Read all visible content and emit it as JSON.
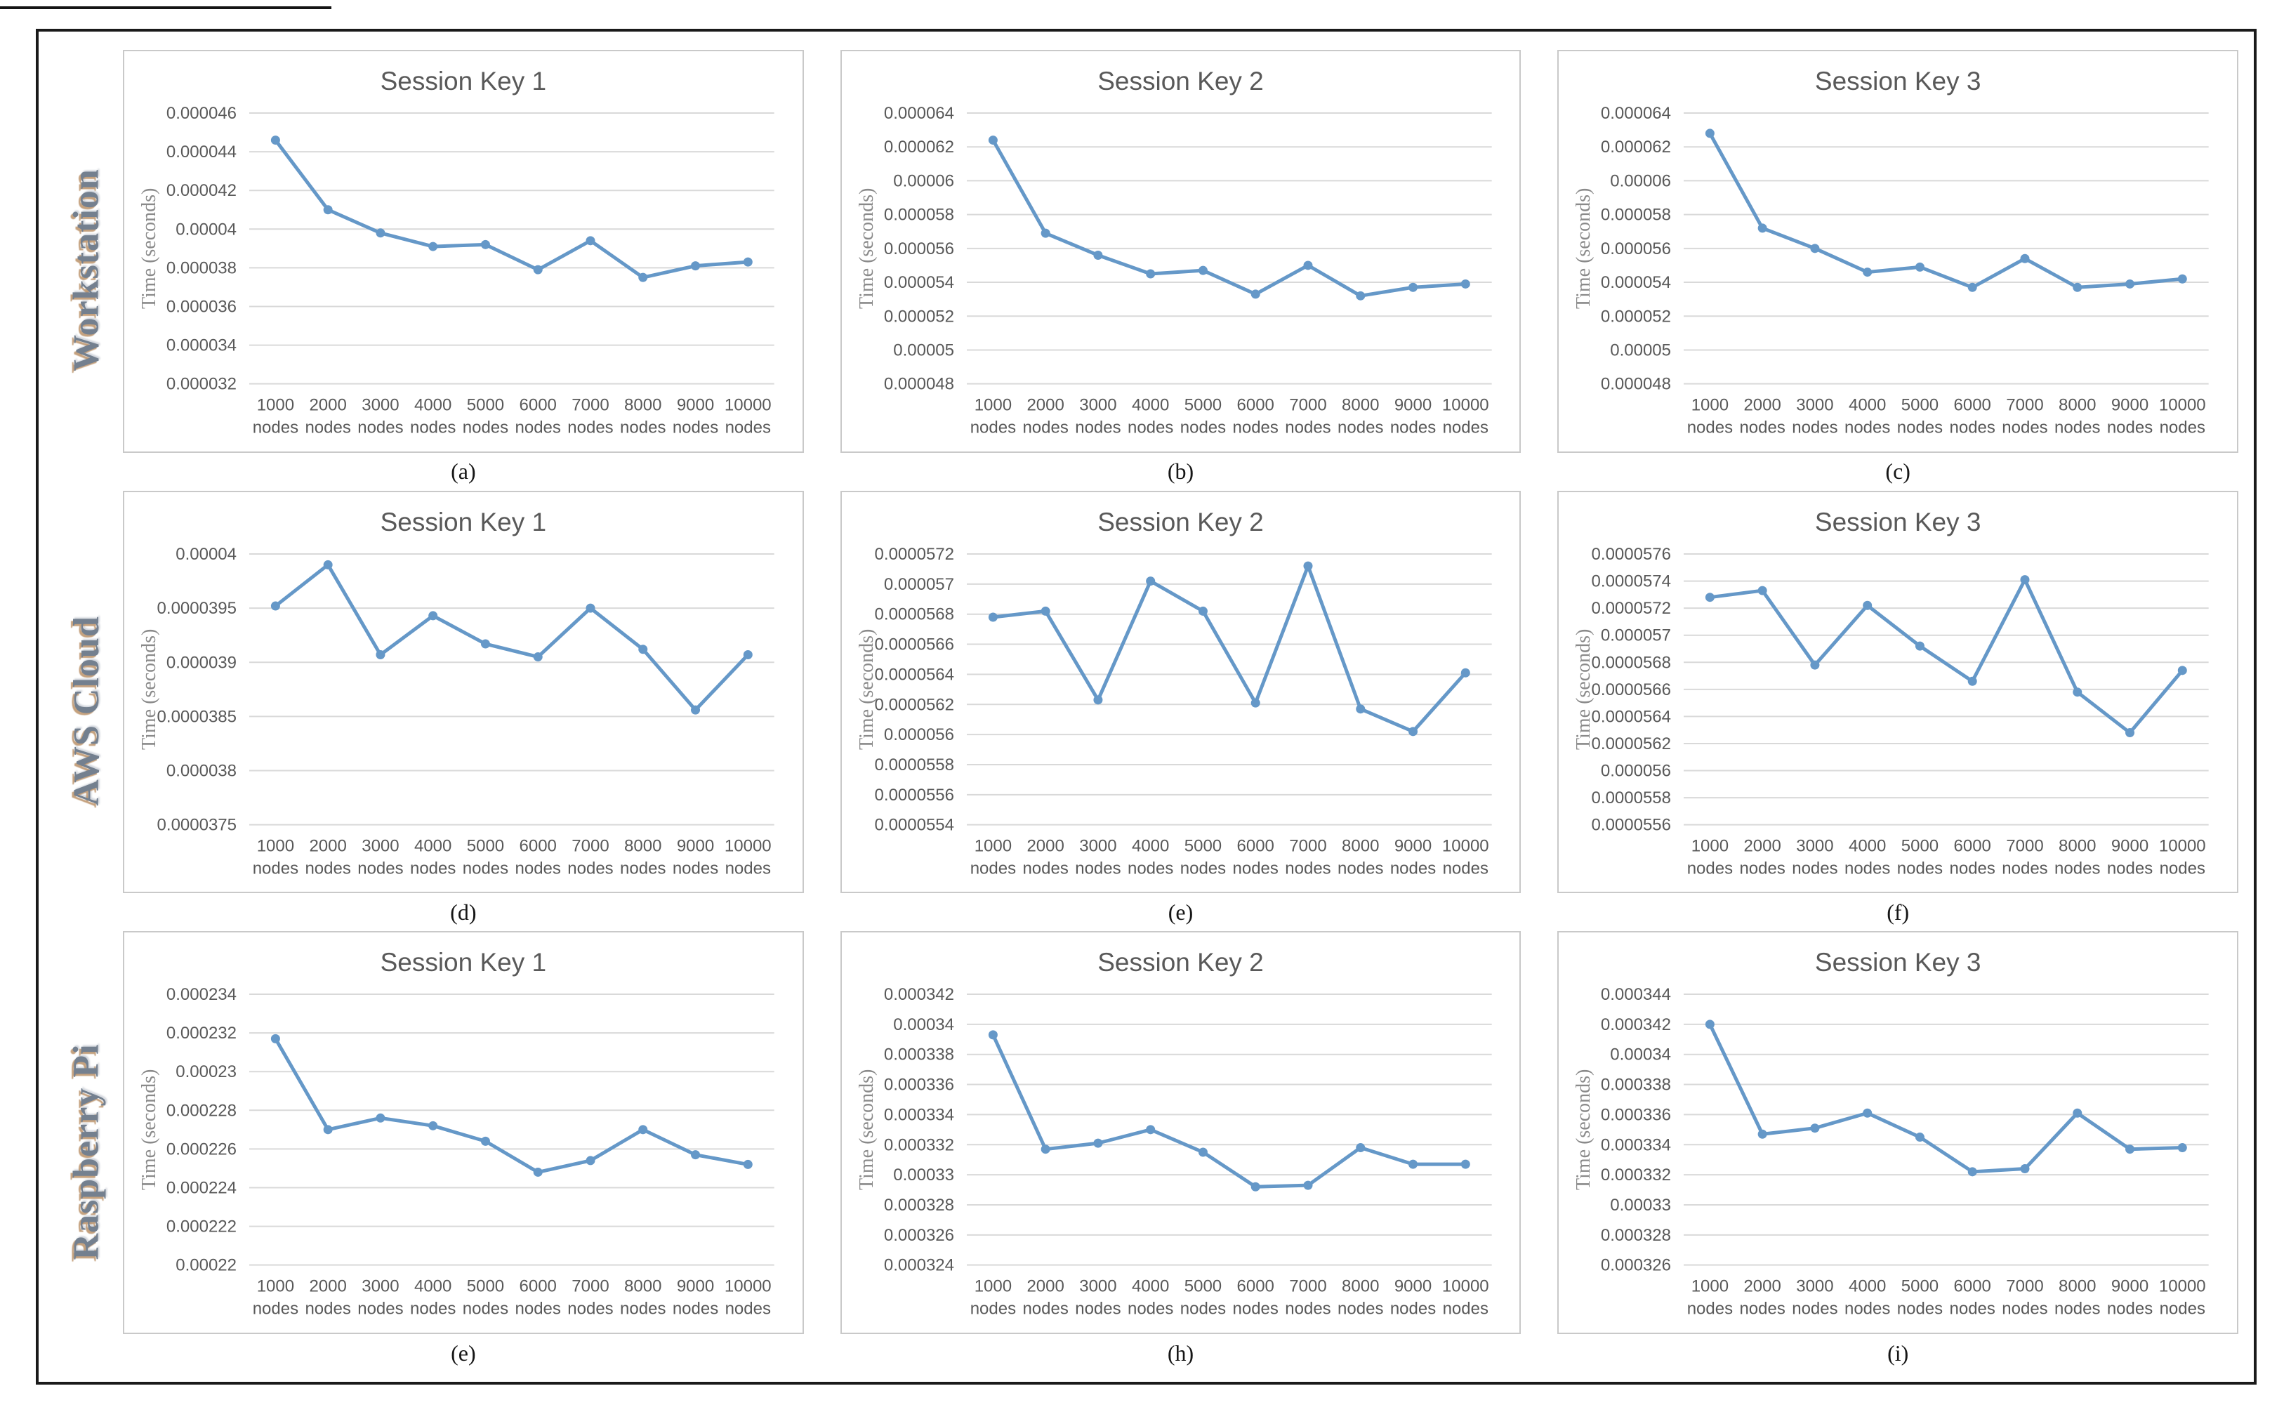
{
  "figure": {
    "row_labels": [
      "Workstation",
      "AWS Cloud",
      "Raspberry Pi"
    ],
    "line_color": "#6598c8",
    "gridline_color": "#d9d9d9",
    "tick_color": "#595959",
    "title_color": "#595959",
    "ylabel_color": "#8a8a8a"
  },
  "chart_data": [
    {
      "type": "line",
      "platform": "Workstation",
      "title": "Session Key 1",
      "caption": "(a)",
      "ylabel": "Time (seconds)",
      "categories": [
        "1000 nodes",
        "2000 nodes",
        "3000 nodes",
        "4000 nodes",
        "5000 nodes",
        "6000 nodes",
        "7000 nodes",
        "8000 nodes",
        "9000 nodes",
        "10000 nodes"
      ],
      "yticks": [
        "0.000046",
        "0.000044",
        "0.000042",
        "0.00004",
        "0.000038",
        "0.000036",
        "0.000034",
        "0.000032"
      ],
      "ylim": [
        3.2e-05,
        4.6e-05
      ],
      "values": [
        4.46e-05,
        4.1e-05,
        3.98e-05,
        3.91e-05,
        3.92e-05,
        3.79e-05,
        3.94e-05,
        3.75e-05,
        3.81e-05,
        3.83e-05
      ]
    },
    {
      "type": "line",
      "platform": "Workstation",
      "title": "Session Key 2",
      "caption": "(b)",
      "ylabel": "Time (seconds)",
      "categories": [
        "1000 nodes",
        "2000 nodes",
        "3000 nodes",
        "4000 nodes",
        "5000 nodes",
        "6000 nodes",
        "7000 nodes",
        "8000 nodes",
        "9000 nodes",
        "10000 nodes"
      ],
      "yticks": [
        "0.000064",
        "0.000062",
        "0.00006",
        "0.000058",
        "0.000056",
        "0.000054",
        "0.000052",
        "0.00005",
        "0.000048"
      ],
      "ylim": [
        4.8e-05,
        6.4e-05
      ],
      "values": [
        6.24e-05,
        5.69e-05,
        5.56e-05,
        5.45e-05,
        5.47e-05,
        5.33e-05,
        5.5e-05,
        5.32e-05,
        5.37e-05,
        5.39e-05
      ]
    },
    {
      "type": "line",
      "platform": "Workstation",
      "title": "Session Key 3",
      "caption": "(c)",
      "ylabel": "Time (seconds)",
      "categories": [
        "1000 nodes",
        "2000 nodes",
        "3000 nodes",
        "4000 nodes",
        "5000 nodes",
        "6000 nodes",
        "7000 nodes",
        "8000 nodes",
        "9000 nodes",
        "10000 nodes"
      ],
      "yticks": [
        "0.000064",
        "0.000062",
        "0.00006",
        "0.000058",
        "0.000056",
        "0.000054",
        "0.000052",
        "0.00005",
        "0.000048"
      ],
      "ylim": [
        4.8e-05,
        6.4e-05
      ],
      "values": [
        6.28e-05,
        5.72e-05,
        5.6e-05,
        5.46e-05,
        5.49e-05,
        5.37e-05,
        5.54e-05,
        5.37e-05,
        5.39e-05,
        5.42e-05
      ]
    },
    {
      "type": "line",
      "platform": "AWS Cloud",
      "title": "Session Key 1",
      "caption": "(d)",
      "ylabel": "Time (seconds)",
      "categories": [
        "1000 nodes",
        "2000 nodes",
        "3000 nodes",
        "4000 nodes",
        "5000 nodes",
        "6000 nodes",
        "7000 nodes",
        "8000 nodes",
        "9000 nodes",
        "10000 nodes"
      ],
      "yticks": [
        "0.00004",
        "0.0000395",
        "0.000039",
        "0.0000385",
        "0.000038",
        "0.0000375"
      ],
      "ylim": [
        3.75e-05,
        4e-05
      ],
      "values": [
        3.952e-05,
        3.99e-05,
        3.907e-05,
        3.943e-05,
        3.917e-05,
        3.905e-05,
        3.95e-05,
        3.912e-05,
        3.856e-05,
        3.907e-05
      ]
    },
    {
      "type": "line",
      "platform": "AWS Cloud",
      "title": "Session Key 2",
      "caption": "(e)",
      "ylabel": "Time (seconds)",
      "categories": [
        "1000 nodes",
        "2000 nodes",
        "3000 nodes",
        "4000 nodes",
        "5000 nodes",
        "6000 nodes",
        "7000 nodes",
        "8000 nodes",
        "9000 nodes",
        "10000 nodes"
      ],
      "yticks": [
        "0.0000572",
        "0.000057",
        "0.0000568",
        "0.0000566",
        "0.0000564",
        "0.0000562",
        "0.000056",
        "0.0000558",
        "0.0000556",
        "0.0000554"
      ],
      "ylim": [
        5.54e-05,
        5.72e-05
      ],
      "values": [
        5.678e-05,
        5.682e-05,
        5.623e-05,
        5.702e-05,
        5.682e-05,
        5.621e-05,
        5.712e-05,
        5.617e-05,
        5.602e-05,
        5.641e-05
      ]
    },
    {
      "type": "line",
      "platform": "AWS Cloud",
      "title": "Session Key 3",
      "caption": "(f)",
      "ylabel": "Time (seconds)",
      "categories": [
        "1000 nodes",
        "2000 nodes",
        "3000 nodes",
        "4000 nodes",
        "5000 nodes",
        "6000 nodes",
        "7000 nodes",
        "8000 nodes",
        "9000 nodes",
        "10000 nodes"
      ],
      "yticks": [
        "0.0000576",
        "0.0000574",
        "0.0000572",
        "0.000057",
        "0.0000568",
        "0.0000566",
        "0.0000564",
        "0.0000562",
        "0.000056",
        "0.0000558",
        "0.0000556"
      ],
      "ylim": [
        5.56e-05,
        5.76e-05
      ],
      "values": [
        5.728e-05,
        5.733e-05,
        5.678e-05,
        5.722e-05,
        5.692e-05,
        5.666e-05,
        5.741e-05,
        5.658e-05,
        5.628e-05,
        5.674e-05
      ]
    },
    {
      "type": "line",
      "platform": "Raspberry Pi",
      "title": "Session Key 1",
      "caption": "(e)",
      "ylabel": "Time (seconds)",
      "categories": [
        "1000 nodes",
        "2000 nodes",
        "3000 nodes",
        "4000 nodes",
        "5000 nodes",
        "6000 nodes",
        "7000 nodes",
        "8000 nodes",
        "9000 nodes",
        "10000 nodes"
      ],
      "yticks": [
        "0.000234",
        "0.000232",
        "0.00023",
        "0.000228",
        "0.000226",
        "0.000224",
        "0.000222",
        "0.00022"
      ],
      "ylim": [
        0.00022,
        0.000234
      ],
      "values": [
        0.0002317,
        0.000227,
        0.0002276,
        0.0002272,
        0.0002264,
        0.0002248,
        0.0002254,
        0.000227,
        0.0002257,
        0.0002252
      ]
    },
    {
      "type": "line",
      "platform": "Raspberry Pi",
      "title": "Session Key 2",
      "caption": "(h)",
      "ylabel": "Time (seconds)",
      "categories": [
        "1000 nodes",
        "2000 nodes",
        "3000 nodes",
        "4000 nodes",
        "5000 nodes",
        "6000 nodes",
        "7000 nodes",
        "8000 nodes",
        "9000 nodes",
        "10000 nodes"
      ],
      "yticks": [
        "0.000342",
        "0.00034",
        "0.000338",
        "0.000336",
        "0.000334",
        "0.000332",
        "0.00033",
        "0.000328",
        "0.000326",
        "0.000324"
      ],
      "ylim": [
        0.000324,
        0.000342
      ],
      "values": [
        0.0003393,
        0.0003317,
        0.0003321,
        0.000333,
        0.0003315,
        0.0003292,
        0.0003293,
        0.0003318,
        0.0003307,
        0.0003307
      ]
    },
    {
      "type": "line",
      "platform": "Raspberry Pi",
      "title": "Session Key 3",
      "caption": "(i)",
      "ylabel": "Time (seconds)",
      "categories": [
        "1000 nodes",
        "2000 nodes",
        "3000 nodes",
        "4000 nodes",
        "5000 nodes",
        "6000 nodes",
        "7000 nodes",
        "8000 nodes",
        "9000 nodes",
        "10000 nodes"
      ],
      "yticks": [
        "0.000344",
        "0.000342",
        "0.00034",
        "0.000338",
        "0.000336",
        "0.000334",
        "0.000332",
        "0.00033",
        "0.000328",
        "0.000326"
      ],
      "ylim": [
        0.000326,
        0.000344
      ],
      "values": [
        0.000342,
        0.0003347,
        0.0003351,
        0.0003361,
        0.0003345,
        0.0003322,
        0.0003324,
        0.0003361,
        0.0003337,
        0.0003338
      ]
    }
  ]
}
